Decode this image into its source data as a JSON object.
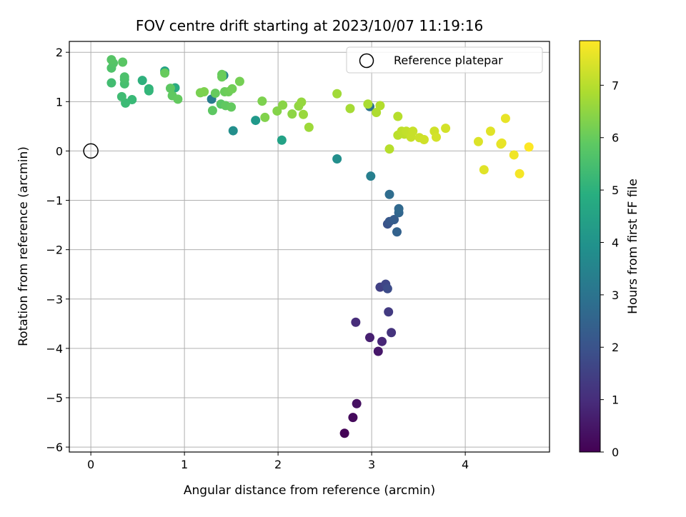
{
  "chart_data": {
    "type": "scatter",
    "title": "FOV centre drift starting at 2023/10/07 11:19:16",
    "xlabel": "Angular distance from reference (arcmin)",
    "ylabel": "Rotation from reference (arcmin)",
    "colorbar_label": "Hours from first FF file",
    "xlim": [
      -0.23,
      4.9
    ],
    "ylim": [
      -6.1,
      2.22
    ],
    "x_ticks": [
      0,
      1,
      2,
      3,
      4
    ],
    "y_ticks": [
      2,
      1,
      0,
      -1,
      -2,
      -3,
      -4,
      -5,
      -6
    ],
    "colorbar_range": [
      0,
      7.85
    ],
    "colorbar_ticks": [
      0,
      1,
      2,
      3,
      4,
      5,
      6,
      7
    ],
    "colormap": "viridis",
    "grid": true,
    "legend": {
      "placement": "upper-right",
      "entries": [
        "Reference platepar"
      ]
    },
    "reference": {
      "x": 0,
      "y": 0
    },
    "points": [
      {
        "x": 2.71,
        "y": -5.72,
        "t": 0.05
      },
      {
        "x": 2.8,
        "y": -5.4,
        "t": 0.2
      },
      {
        "x": 2.84,
        "y": -5.12,
        "t": 0.35
      },
      {
        "x": 3.07,
        "y": -4.06,
        "t": 0.5
      },
      {
        "x": 2.98,
        "y": -3.78,
        "t": 0.7
      },
      {
        "x": 3.11,
        "y": -3.86,
        "t": 0.85
      },
      {
        "x": 2.83,
        "y": -3.47,
        "t": 1.0
      },
      {
        "x": 3.21,
        "y": -3.68,
        "t": 1.15
      },
      {
        "x": 3.18,
        "y": -3.26,
        "t": 1.35
      },
      {
        "x": 3.09,
        "y": -2.76,
        "t": 1.5
      },
      {
        "x": 3.15,
        "y": -2.7,
        "t": 1.65
      },
      {
        "x": 3.17,
        "y": -2.79,
        "t": 1.8
      },
      {
        "x": 3.17,
        "y": -1.48,
        "t": 2.0
      },
      {
        "x": 3.19,
        "y": -1.43,
        "t": 2.15
      },
      {
        "x": 3.24,
        "y": -1.39,
        "t": 2.3
      },
      {
        "x": 3.27,
        "y": -1.64,
        "t": 2.45
      },
      {
        "x": 3.29,
        "y": -1.25,
        "t": 2.55
      },
      {
        "x": 3.29,
        "y": -1.17,
        "t": 2.65
      },
      {
        "x": 3.19,
        "y": -0.88,
        "t": 2.8
      },
      {
        "x": 2.98,
        "y": 0.9,
        "t": 2.95
      },
      {
        "x": 2.99,
        "y": -0.51,
        "t": 3.4
      },
      {
        "x": 1.29,
        "y": 1.05,
        "t": 3.3
      },
      {
        "x": 1.42,
        "y": 1.53,
        "t": 3.6
      },
      {
        "x": 1.52,
        "y": 0.41,
        "t": 3.9
      },
      {
        "x": 1.76,
        "y": 0.62,
        "t": 4.2
      },
      {
        "x": 2.04,
        "y": 0.22,
        "t": 4.5
      },
      {
        "x": 2.63,
        "y": -0.16,
        "t": 3.9
      },
      {
        "x": 0.79,
        "y": 1.62,
        "t": 4.5
      },
      {
        "x": 0.9,
        "y": 1.28,
        "t": 4.8
      },
      {
        "x": 0.55,
        "y": 1.43,
        "t": 5.0
      },
      {
        "x": 0.62,
        "y": 1.26,
        "t": 5.1
      },
      {
        "x": 0.62,
        "y": 1.22,
        "t": 5.2
      },
      {
        "x": 0.44,
        "y": 1.04,
        "t": 5.3
      },
      {
        "x": 0.37,
        "y": 0.97,
        "t": 5.35
      },
      {
        "x": 0.33,
        "y": 1.1,
        "t": 5.4
      },
      {
        "x": 0.22,
        "y": 1.38,
        "t": 5.45
      },
      {
        "x": 0.36,
        "y": 1.36,
        "t": 5.5
      },
      {
        "x": 0.36,
        "y": 1.45,
        "t": 5.55
      },
      {
        "x": 0.36,
        "y": 1.5,
        "t": 5.6
      },
      {
        "x": 0.22,
        "y": 1.68,
        "t": 5.65
      },
      {
        "x": 0.24,
        "y": 1.78,
        "t": 5.7
      },
      {
        "x": 0.22,
        "y": 1.85,
        "t": 5.75
      },
      {
        "x": 0.34,
        "y": 1.8,
        "t": 5.8
      },
      {
        "x": 0.85,
        "y": 1.27,
        "t": 5.85
      },
      {
        "x": 0.87,
        "y": 1.12,
        "t": 5.9
      },
      {
        "x": 0.93,
        "y": 1.05,
        "t": 5.95
      },
      {
        "x": 0.79,
        "y": 1.58,
        "t": 6.0
      },
      {
        "x": 1.4,
        "y": 1.55,
        "t": 6.0
      },
      {
        "x": 1.4,
        "y": 1.5,
        "t": 6.05
      },
      {
        "x": 1.39,
        "y": 0.95,
        "t": 5.8
      },
      {
        "x": 1.3,
        "y": 0.82,
        "t": 5.85
      },
      {
        "x": 1.44,
        "y": 0.92,
        "t": 5.9
      },
      {
        "x": 1.5,
        "y": 0.89,
        "t": 5.95
      },
      {
        "x": 1.33,
        "y": 1.17,
        "t": 6.0
      },
      {
        "x": 1.43,
        "y": 1.2,
        "t": 6.05
      },
      {
        "x": 1.47,
        "y": 1.2,
        "t": 6.1
      },
      {
        "x": 1.51,
        "y": 1.26,
        "t": 6.15
      },
      {
        "x": 1.59,
        "y": 1.41,
        "t": 6.2
      },
      {
        "x": 1.17,
        "y": 1.18,
        "t": 6.25
      },
      {
        "x": 1.21,
        "y": 1.2,
        "t": 6.3
      },
      {
        "x": 1.83,
        "y": 1.01,
        "t": 6.3
      },
      {
        "x": 1.86,
        "y": 0.68,
        "t": 6.35
      },
      {
        "x": 1.99,
        "y": 0.81,
        "t": 6.4
      },
      {
        "x": 2.05,
        "y": 0.93,
        "t": 6.45
      },
      {
        "x": 2.15,
        "y": 0.75,
        "t": 6.5
      },
      {
        "x": 2.22,
        "y": 0.91,
        "t": 6.55
      },
      {
        "x": 2.25,
        "y": 0.99,
        "t": 6.6
      },
      {
        "x": 2.27,
        "y": 0.74,
        "t": 6.65
      },
      {
        "x": 2.33,
        "y": 0.48,
        "t": 6.7
      },
      {
        "x": 2.63,
        "y": 1.16,
        "t": 6.75
      },
      {
        "x": 2.77,
        "y": 0.86,
        "t": 6.8
      },
      {
        "x": 2.96,
        "y": 0.95,
        "t": 6.85
      },
      {
        "x": 3.05,
        "y": 0.78,
        "t": 6.9
      },
      {
        "x": 3.09,
        "y": 0.92,
        "t": 6.95
      },
      {
        "x": 3.28,
        "y": 0.7,
        "t": 7.0
      },
      {
        "x": 3.19,
        "y": 0.04,
        "t": 7.0
      },
      {
        "x": 3.28,
        "y": 0.32,
        "t": 7.05
      },
      {
        "x": 3.32,
        "y": 0.4,
        "t": 7.1
      },
      {
        "x": 3.35,
        "y": 0.34,
        "t": 7.1
      },
      {
        "x": 3.37,
        "y": 0.4,
        "t": 7.15
      },
      {
        "x": 3.42,
        "y": 0.28,
        "t": 7.2
      },
      {
        "x": 3.44,
        "y": 0.4,
        "t": 7.2
      },
      {
        "x": 3.51,
        "y": 0.27,
        "t": 7.25
      },
      {
        "x": 3.56,
        "y": 0.23,
        "t": 7.3
      },
      {
        "x": 3.67,
        "y": 0.4,
        "t": 7.3
      },
      {
        "x": 3.69,
        "y": 0.28,
        "t": 7.35
      },
      {
        "x": 3.79,
        "y": 0.46,
        "t": 7.35
      },
      {
        "x": 4.14,
        "y": 0.19,
        "t": 7.45
      },
      {
        "x": 4.2,
        "y": -0.38,
        "t": 7.5
      },
      {
        "x": 4.27,
        "y": 0.4,
        "t": 7.5
      },
      {
        "x": 4.38,
        "y": 0.14,
        "t": 7.55
      },
      {
        "x": 4.39,
        "y": 0.16,
        "t": 7.6
      },
      {
        "x": 4.43,
        "y": 0.66,
        "t": 7.6
      },
      {
        "x": 4.52,
        "y": -0.08,
        "t": 7.7
      },
      {
        "x": 4.58,
        "y": -0.46,
        "t": 7.75
      },
      {
        "x": 4.68,
        "y": 0.08,
        "t": 7.85
      }
    ]
  }
}
